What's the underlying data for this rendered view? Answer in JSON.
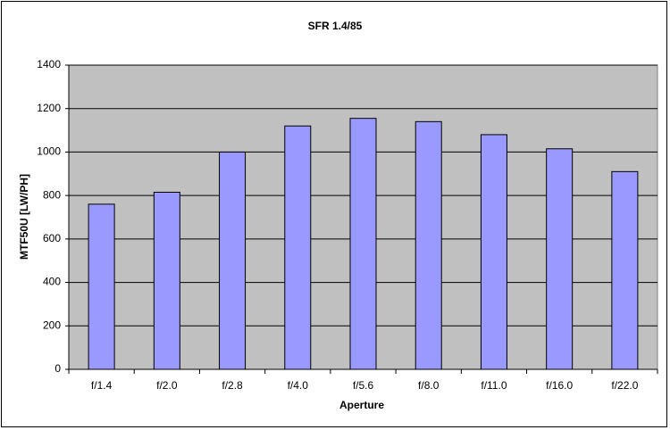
{
  "chart_data": {
    "type": "bar",
    "title": "SFR 1.4/85",
    "x_label": "Aperture",
    "y_label": "MTF50U [LW/PH]",
    "categories": [
      "f/1.4",
      "f/2.0",
      "f/2.8",
      "f/4.0",
      "f/5.6",
      "f/8.0",
      "f/11.0",
      "f/16.0",
      "f/22.0"
    ],
    "values": [
      760,
      815,
      1000,
      1120,
      1155,
      1140,
      1080,
      1015,
      910
    ],
    "color": "#9999ff",
    "plot_background": "#c0c0c0",
    "ylim": [
      0,
      1400
    ],
    "yticks": [
      0,
      200,
      400,
      600,
      800,
      1000,
      1200,
      1400
    ],
    "grid": true
  }
}
